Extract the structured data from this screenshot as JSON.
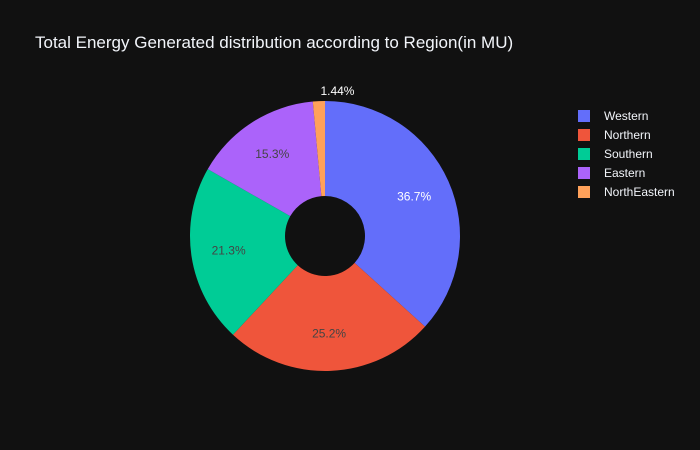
{
  "chart_data": {
    "type": "pie",
    "hole": true,
    "title": "Total Energy Generated distribution according to Region(in MU)",
    "labels": [
      "Western",
      "Northern",
      "Southern",
      "Eastern",
      "NorthEastern"
    ],
    "values": [
      36.7,
      25.2,
      21.3,
      15.3,
      1.44
    ],
    "text_labels": [
      "36.7%",
      "25.2%",
      "21.3%",
      "15.3%",
      "1.44%"
    ],
    "colors": [
      "#636efa",
      "#EF553B",
      "#00cc96",
      "#ab63fa",
      "#FFA15A"
    ],
    "label_colors": [
      "#ffffff",
      "#444444",
      "#444444",
      "#444444",
      "#ffffff"
    ],
    "legend_position": "top-right",
    "background": "#111111"
  }
}
